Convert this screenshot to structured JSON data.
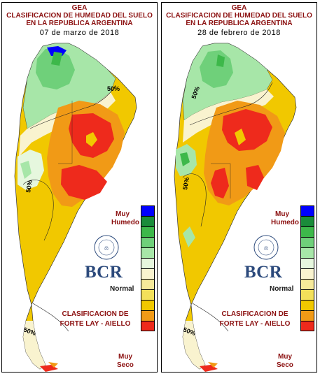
{
  "maps": [
    {
      "id": "left",
      "title_line1": "GEA",
      "title_line2": "CLASIFICACION DE HUMEDAD DEL SUELO",
      "title_line3": "EN LA REPUBLICA ARGENTINA",
      "date": "07 de marzo de 2018",
      "contour_labels": [
        "50%",
        "50%",
        "50%"
      ]
    },
    {
      "id": "right",
      "title_line1": "GEA",
      "title_line2": "CLASIFICACION DE HUMEDAD DEL SUELO",
      "title_line3": "EN LA REPUBLICA ARGENTINA",
      "date": "28 de febrero de 2018",
      "contour_labels": [
        "50%",
        "50%",
        "50%"
      ]
    }
  ],
  "legend": {
    "top_label_1": "Muy",
    "top_label_2": "Humedo",
    "middle_label": "Normal",
    "bottom_label_1": "Muy",
    "bottom_label_2": "Seco",
    "classes": [
      {
        "level": "muy-humedo-1",
        "color": "#0000ff"
      },
      {
        "level": "humedo-2",
        "color": "#1a8c3a"
      },
      {
        "level": "humedo-3",
        "color": "#3db84a"
      },
      {
        "level": "humedo-4",
        "color": "#6fd07a"
      },
      {
        "level": "humedo-5",
        "color": "#a7e6a8"
      },
      {
        "level": "normal-6",
        "color": "#e6f7de"
      },
      {
        "level": "normal-7",
        "color": "#f9f3cf"
      },
      {
        "level": "seco-8",
        "color": "#f6e99a"
      },
      {
        "level": "seco-9",
        "color": "#f3e05a"
      },
      {
        "level": "seco-10",
        "color": "#f1c800"
      },
      {
        "level": "seco-11",
        "color": "#f19a16"
      },
      {
        "level": "muy-seco-12",
        "color": "#ee2a1c"
      }
    ]
  },
  "classification": {
    "line1": "CLASIFICACION DE",
    "line2": "FORTE LAY - AIELLO"
  },
  "logo_text": "BCR",
  "seal_text": "BOLSA DE COMERCIO DE ROSARIO"
}
